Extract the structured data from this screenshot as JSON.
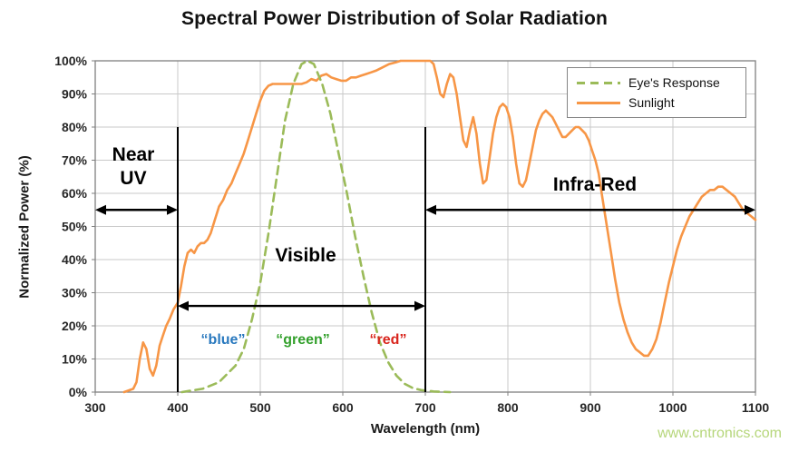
{
  "page": {
    "title": "Spectral Power Distribution of Solar Radiation",
    "watermark": "www.cntronics.com"
  },
  "annotations": {
    "near_uv_line1": "Near",
    "near_uv_line2": "UV",
    "visible": "Visible",
    "infra_red": "Infra-Red",
    "blue": "“blue”",
    "green": "“green”",
    "red": "“red”"
  },
  "colors": {
    "sunlight": "#F79646",
    "eye_response": "#9BBB59",
    "grid": "#C9C9C9",
    "axis": "#7F7F7F",
    "annotation": "#000000",
    "blue_label": "#2878BE",
    "green_label": "#33A02C",
    "red_label": "#D9251D",
    "watermark": "#A9CF63"
  },
  "chart_data": {
    "type": "line",
    "title": "Spectral Power Distribution of Solar Radiation",
    "xlabel": "Wavelength (nm)",
    "ylabel": "Normalized Power (%)",
    "xlim": [
      300,
      1100
    ],
    "ylim": [
      0,
      100
    ],
    "grid": true,
    "legend_position": "top-right",
    "x_ticks": [
      300,
      400,
      500,
      600,
      700,
      800,
      900,
      1000,
      1100
    ],
    "x_tick_labels": [
      "300",
      "400",
      "500",
      "600",
      "700",
      "800",
      "900",
      "1000",
      "1100"
    ],
    "y_ticks": [
      0,
      10,
      20,
      30,
      40,
      50,
      60,
      70,
      80,
      90,
      100
    ],
    "y_tick_labels": [
      "0%",
      "10%",
      "20%",
      "30%",
      "40%",
      "50%",
      "60%",
      "70%",
      "80%",
      "90%",
      "100%"
    ],
    "boundary_lines": [
      {
        "x": 400,
        "y_from": 0,
        "y_to": 80
      },
      {
        "x": 700,
        "y_from": 0,
        "y_to": 80
      }
    ],
    "range_arrows": [
      {
        "label": "Near UV",
        "x1": 300,
        "x2": 400,
        "y": 55
      },
      {
        "label": "Visible",
        "x1": 400,
        "x2": 700,
        "y": 26
      },
      {
        "label": "Infra-Red",
        "x1": 700,
        "x2": 1100,
        "y": 55
      }
    ],
    "series": [
      {
        "name": "Sunlight",
        "color": "#F79646",
        "dash": false,
        "points": [
          [
            335,
            0
          ],
          [
            346,
            1
          ],
          [
            350,
            3
          ],
          [
            354,
            10
          ],
          [
            358,
            15
          ],
          [
            362,
            13
          ],
          [
            366,
            7
          ],
          [
            370,
            5
          ],
          [
            374,
            8
          ],
          [
            378,
            14
          ],
          [
            382,
            17
          ],
          [
            386,
            20
          ],
          [
            390,
            22
          ],
          [
            395,
            25
          ],
          [
            400,
            27
          ],
          [
            404,
            32
          ],
          [
            408,
            38
          ],
          [
            412,
            42
          ],
          [
            416,
            43
          ],
          [
            420,
            42
          ],
          [
            424,
            44
          ],
          [
            428,
            45
          ],
          [
            432,
            45
          ],
          [
            436,
            46
          ],
          [
            440,
            48
          ],
          [
            445,
            52
          ],
          [
            450,
            56
          ],
          [
            455,
            58
          ],
          [
            460,
            61
          ],
          [
            465,
            63
          ],
          [
            470,
            66
          ],
          [
            475,
            69
          ],
          [
            480,
            72
          ],
          [
            485,
            76
          ],
          [
            490,
            80
          ],
          [
            495,
            84
          ],
          [
            500,
            88
          ],
          [
            505,
            91
          ],
          [
            510,
            92.5
          ],
          [
            515,
            93
          ],
          [
            520,
            93
          ],
          [
            530,
            93
          ],
          [
            540,
            93
          ],
          [
            550,
            93
          ],
          [
            556,
            93.5
          ],
          [
            562,
            94.5
          ],
          [
            568,
            94
          ],
          [
            574,
            95.5
          ],
          [
            580,
            96
          ],
          [
            586,
            95
          ],
          [
            592,
            94.5
          ],
          [
            598,
            94
          ],
          [
            604,
            94
          ],
          [
            610,
            95
          ],
          [
            616,
            95
          ],
          [
            622,
            95.5
          ],
          [
            628,
            96
          ],
          [
            634,
            96.5
          ],
          [
            640,
            97
          ],
          [
            648,
            98
          ],
          [
            656,
            99
          ],
          [
            664,
            99.5
          ],
          [
            670,
            100
          ],
          [
            680,
            100
          ],
          [
            690,
            100
          ],
          [
            700,
            100
          ],
          [
            706,
            100
          ],
          [
            710,
            99
          ],
          [
            714,
            95
          ],
          [
            718,
            90
          ],
          [
            722,
            89
          ],
          [
            726,
            93
          ],
          [
            730,
            96
          ],
          [
            734,
            95
          ],
          [
            738,
            90
          ],
          [
            742,
            83
          ],
          [
            746,
            76
          ],
          [
            750,
            74
          ],
          [
            754,
            79
          ],
          [
            758,
            83
          ],
          [
            762,
            78
          ],
          [
            766,
            69
          ],
          [
            770,
            63
          ],
          [
            774,
            64
          ],
          [
            778,
            71
          ],
          [
            782,
            78
          ],
          [
            786,
            83
          ],
          [
            790,
            86
          ],
          [
            794,
            87
          ],
          [
            798,
            86
          ],
          [
            802,
            83
          ],
          [
            806,
            77
          ],
          [
            810,
            69
          ],
          [
            814,
            63
          ],
          [
            818,
            62
          ],
          [
            822,
            64
          ],
          [
            826,
            69
          ],
          [
            830,
            74
          ],
          [
            834,
            79
          ],
          [
            838,
            82
          ],
          [
            842,
            84
          ],
          [
            846,
            85
          ],
          [
            850,
            84
          ],
          [
            854,
            83
          ],
          [
            858,
            81
          ],
          [
            862,
            79
          ],
          [
            866,
            77
          ],
          [
            870,
            77
          ],
          [
            874,
            78
          ],
          [
            878,
            79
          ],
          [
            882,
            80
          ],
          [
            886,
            80
          ],
          [
            890,
            79
          ],
          [
            894,
            78
          ],
          [
            898,
            76
          ],
          [
            902,
            73
          ],
          [
            906,
            70
          ],
          [
            910,
            66
          ],
          [
            915,
            58
          ],
          [
            920,
            50
          ],
          [
            925,
            42
          ],
          [
            930,
            34
          ],
          [
            935,
            27
          ],
          [
            940,
            22
          ],
          [
            945,
            18
          ],
          [
            950,
            15
          ],
          [
            955,
            13
          ],
          [
            960,
            12
          ],
          [
            965,
            11
          ],
          [
            970,
            11
          ],
          [
            975,
            13
          ],
          [
            980,
            16
          ],
          [
            985,
            21
          ],
          [
            990,
            27
          ],
          [
            995,
            33
          ],
          [
            1000,
            38
          ],
          [
            1005,
            43
          ],
          [
            1010,
            47
          ],
          [
            1015,
            50
          ],
          [
            1020,
            53
          ],
          [
            1025,
            55
          ],
          [
            1030,
            57
          ],
          [
            1035,
            59
          ],
          [
            1040,
            60
          ],
          [
            1045,
            61
          ],
          [
            1050,
            61
          ],
          [
            1055,
            62
          ],
          [
            1060,
            62
          ],
          [
            1065,
            61
          ],
          [
            1070,
            60
          ],
          [
            1075,
            59
          ],
          [
            1080,
            57
          ],
          [
            1085,
            55
          ],
          [
            1090,
            54
          ],
          [
            1095,
            53
          ],
          [
            1100,
            52
          ]
        ]
      },
      {
        "name": "Eye's Response",
        "color": "#9BBB59",
        "dash": true,
        "points": [
          [
            405,
            0
          ],
          [
            430,
            1
          ],
          [
            450,
            3
          ],
          [
            470,
            8
          ],
          [
            480,
            13
          ],
          [
            490,
            22
          ],
          [
            500,
            33
          ],
          [
            510,
            48
          ],
          [
            520,
            65
          ],
          [
            530,
            82
          ],
          [
            540,
            93
          ],
          [
            550,
            99
          ],
          [
            557,
            100
          ],
          [
            565,
            99
          ],
          [
            575,
            93
          ],
          [
            585,
            84
          ],
          [
            595,
            72
          ],
          [
            605,
            60
          ],
          [
            615,
            47
          ],
          [
            625,
            35
          ],
          [
            635,
            24
          ],
          [
            645,
            15
          ],
          [
            655,
            9
          ],
          [
            665,
            5
          ],
          [
            675,
            2.5
          ],
          [
            685,
            1.2
          ],
          [
            695,
            0.6
          ],
          [
            710,
            0.2
          ],
          [
            730,
            0
          ]
        ]
      }
    ]
  }
}
